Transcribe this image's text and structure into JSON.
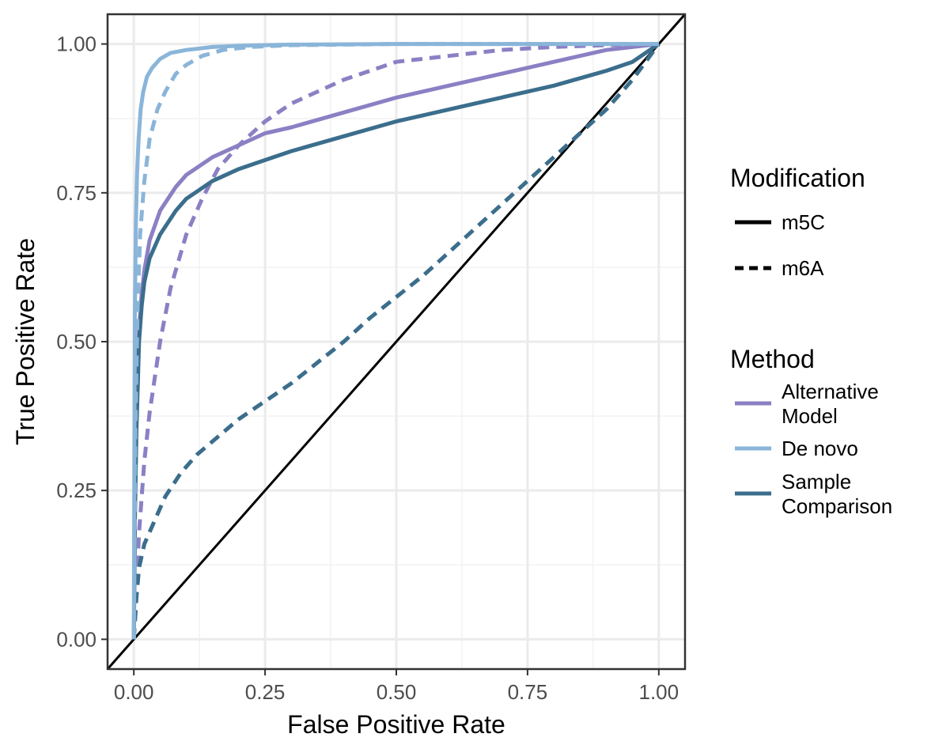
{
  "chart_data": {
    "type": "line",
    "xlabel": "False Positive Rate",
    "ylabel": "True Positive Rate",
    "xlim": [
      -0.05,
      1.05
    ],
    "ylim": [
      -0.05,
      1.05
    ],
    "x_ticks": [
      "0.00",
      "0.25",
      "0.50",
      "0.75",
      "1.00"
    ],
    "y_ticks": [
      "0.00",
      "0.25",
      "0.50",
      "0.75",
      "1.00"
    ],
    "grid": true,
    "legend_position": "right",
    "reference_line": {
      "x": [
        -0.05,
        1.05
      ],
      "y": [
        -0.05,
        1.05
      ],
      "color": "#000000"
    },
    "colors": {
      "Alternative Model": "#8b80c4",
      "De novo": "#8ab5d9",
      "Sample Comparison": "#3b6e8c"
    },
    "legend": {
      "modification": {
        "title": "Modification",
        "items": [
          {
            "label": "m5C",
            "dash": "solid"
          },
          {
            "label": "m6A",
            "dash": "dashed"
          }
        ]
      },
      "method": {
        "title": "Method",
        "items": [
          {
            "label_lines": [
              "Alternative",
              "Model"
            ],
            "color": "#8b80c4"
          },
          {
            "label_lines": [
              "De novo"
            ],
            "color": "#8ab5d9"
          },
          {
            "label_lines": [
              "Sample",
              "Comparison"
            ],
            "color": "#3b6e8c"
          }
        ]
      }
    },
    "series": [
      {
        "method": "Alternative Model",
        "modification": "m6A",
        "dash": "dashed",
        "color": "#8b80c4",
        "x": [
          0,
          0.005,
          0.01,
          0.02,
          0.03,
          0.05,
          0.07,
          0.1,
          0.13,
          0.16,
          0.2,
          0.25,
          0.3,
          0.4,
          0.5,
          0.6,
          0.7,
          0.8,
          0.9,
          1.0
        ],
        "y": [
          0,
          0.08,
          0.18,
          0.3,
          0.38,
          0.5,
          0.59,
          0.68,
          0.74,
          0.79,
          0.83,
          0.87,
          0.9,
          0.94,
          0.97,
          0.98,
          0.99,
          0.995,
          0.998,
          1.0
        ]
      },
      {
        "method": "Sample Comparison",
        "modification": "m6A",
        "dash": "dashed",
        "color": "#3b6e8c",
        "x": [
          0,
          0.005,
          0.01,
          0.02,
          0.04,
          0.06,
          0.09,
          0.12,
          0.16,
          0.2,
          0.25,
          0.3,
          0.35,
          0.4,
          0.45,
          0.5,
          0.55,
          0.6,
          0.65,
          0.7,
          0.75,
          0.8,
          0.85,
          0.9,
          0.95,
          1.0
        ],
        "y": [
          0,
          0.07,
          0.12,
          0.16,
          0.2,
          0.24,
          0.28,
          0.31,
          0.34,
          0.37,
          0.4,
          0.43,
          0.465,
          0.5,
          0.54,
          0.575,
          0.61,
          0.65,
          0.69,
          0.73,
          0.77,
          0.81,
          0.85,
          0.89,
          0.94,
          1.0
        ]
      },
      {
        "method": "Alternative Model",
        "modification": "m5C",
        "dash": "solid",
        "color": "#8b80c4",
        "x": [
          0,
          0.002,
          0.005,
          0.01,
          0.015,
          0.02,
          0.03,
          0.05,
          0.08,
          0.1,
          0.15,
          0.2,
          0.25,
          0.3,
          0.4,
          0.5,
          0.6,
          0.7,
          0.8,
          0.9,
          1.0
        ],
        "y": [
          0,
          0.2,
          0.38,
          0.52,
          0.58,
          0.62,
          0.67,
          0.72,
          0.76,
          0.78,
          0.81,
          0.83,
          0.85,
          0.86,
          0.885,
          0.91,
          0.93,
          0.95,
          0.97,
          0.99,
          1.0
        ]
      },
      {
        "method": "Sample Comparison",
        "modification": "m5C",
        "dash": "solid",
        "color": "#3b6e8c",
        "x": [
          0,
          0.002,
          0.005,
          0.01,
          0.015,
          0.02,
          0.03,
          0.05,
          0.08,
          0.1,
          0.15,
          0.2,
          0.25,
          0.3,
          0.4,
          0.5,
          0.6,
          0.7,
          0.8,
          0.9,
          0.95,
          1.0
        ],
        "y": [
          0,
          0.2,
          0.35,
          0.5,
          0.56,
          0.6,
          0.64,
          0.68,
          0.72,
          0.74,
          0.77,
          0.79,
          0.805,
          0.82,
          0.845,
          0.87,
          0.89,
          0.91,
          0.93,
          0.955,
          0.97,
          1.0
        ]
      },
      {
        "method": "De novo",
        "modification": "m6A",
        "dash": "dashed",
        "color": "#8ab5d9",
        "x": [
          0,
          0.003,
          0.007,
          0.012,
          0.02,
          0.03,
          0.045,
          0.06,
          0.08,
          0.1,
          0.13,
          0.17,
          0.22,
          0.3,
          0.5,
          0.75,
          1.0
        ],
        "y": [
          0,
          0.35,
          0.55,
          0.68,
          0.77,
          0.84,
          0.89,
          0.92,
          0.95,
          0.965,
          0.98,
          0.99,
          0.995,
          0.998,
          1.0,
          1.0,
          1.0
        ]
      },
      {
        "method": "De novo",
        "modification": "m5C",
        "dash": "solid",
        "color": "#8ab5d9",
        "x": [
          0,
          0.001,
          0.002,
          0.004,
          0.006,
          0.009,
          0.013,
          0.018,
          0.025,
          0.035,
          0.05,
          0.07,
          0.1,
          0.15,
          0.2,
          0.3,
          0.5,
          0.75,
          1.0
        ],
        "y": [
          0,
          0.3,
          0.55,
          0.7,
          0.78,
          0.84,
          0.89,
          0.92,
          0.945,
          0.96,
          0.975,
          0.985,
          0.99,
          0.995,
          0.997,
          0.999,
          1.0,
          1.0,
          1.0
        ]
      }
    ]
  }
}
